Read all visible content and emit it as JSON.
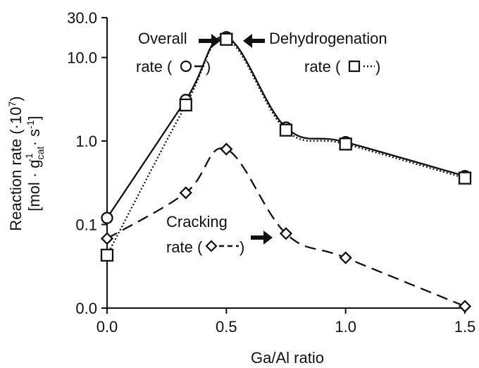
{
  "chart_data": {
    "type": "line",
    "xlabel": "Ga/Al ratio",
    "ylabel_line1": "Reaction rate (·10",
    "ylabel_line1_sup": "7",
    "ylabel_line1_end": ")",
    "ylabel_line2_a": "[mol · g",
    "ylabel_line2_sub": "cat",
    "ylabel_line2_sup1": "-1",
    "ylabel_line2_b": "· s",
    "ylabel_line2_sup2": "-1",
    "ylabel_line2_end": "]",
    "y_scale": "log",
    "xlim": [
      0.0,
      1.5
    ],
    "ylim": [
      0.01,
      30.0
    ],
    "x_ticks": [
      {
        "value": 0.0,
        "label": "0.0"
      },
      {
        "value": 0.5,
        "label": "0.5"
      },
      {
        "value": 1.0,
        "label": "1.0"
      },
      {
        "value": 1.5,
        "label": "1.5"
      }
    ],
    "y_ticks": [
      {
        "value": 0.01,
        "label": "0.0"
      },
      {
        "value": 0.1,
        "label": "0.1"
      },
      {
        "value": 1.0,
        "label": "1.0"
      },
      {
        "value": 10.0,
        "label": "10.0"
      },
      {
        "value": 30.0,
        "label": "30.0"
      }
    ],
    "series": [
      {
        "key": "overall",
        "marker": "circle",
        "line": "solid",
        "x": [
          0.0,
          0.33,
          0.5,
          0.75,
          1.0,
          1.5
        ],
        "y": [
          0.12,
          3.1,
          17.5,
          1.45,
          0.97,
          0.38
        ]
      },
      {
        "key": "dehydrogenation",
        "marker": "square",
        "line": "dotted",
        "x": [
          0.0,
          0.33,
          0.5,
          0.75,
          1.0,
          1.5
        ],
        "y": [
          0.043,
          2.7,
          16.5,
          1.35,
          0.92,
          0.36
        ]
      },
      {
        "key": "cracking",
        "marker": "diamond",
        "line": "dashed",
        "x": [
          0.0,
          0.33,
          0.5,
          0.75,
          1.0,
          1.5
        ],
        "y": [
          0.068,
          0.24,
          0.8,
          0.078,
          0.04,
          0.0105
        ]
      }
    ],
    "annotations": {
      "overall_line1": "Overall",
      "overall_line2": "rate (",
      "overall_line2_end": ")",
      "dehydro_line1": "Dehydrogenation",
      "dehydro_line2": "rate (",
      "dehydro_line2_end": ")",
      "cracking_line1": "Cracking",
      "cracking_line2": "rate (",
      "cracking_line2_end": ")"
    }
  }
}
